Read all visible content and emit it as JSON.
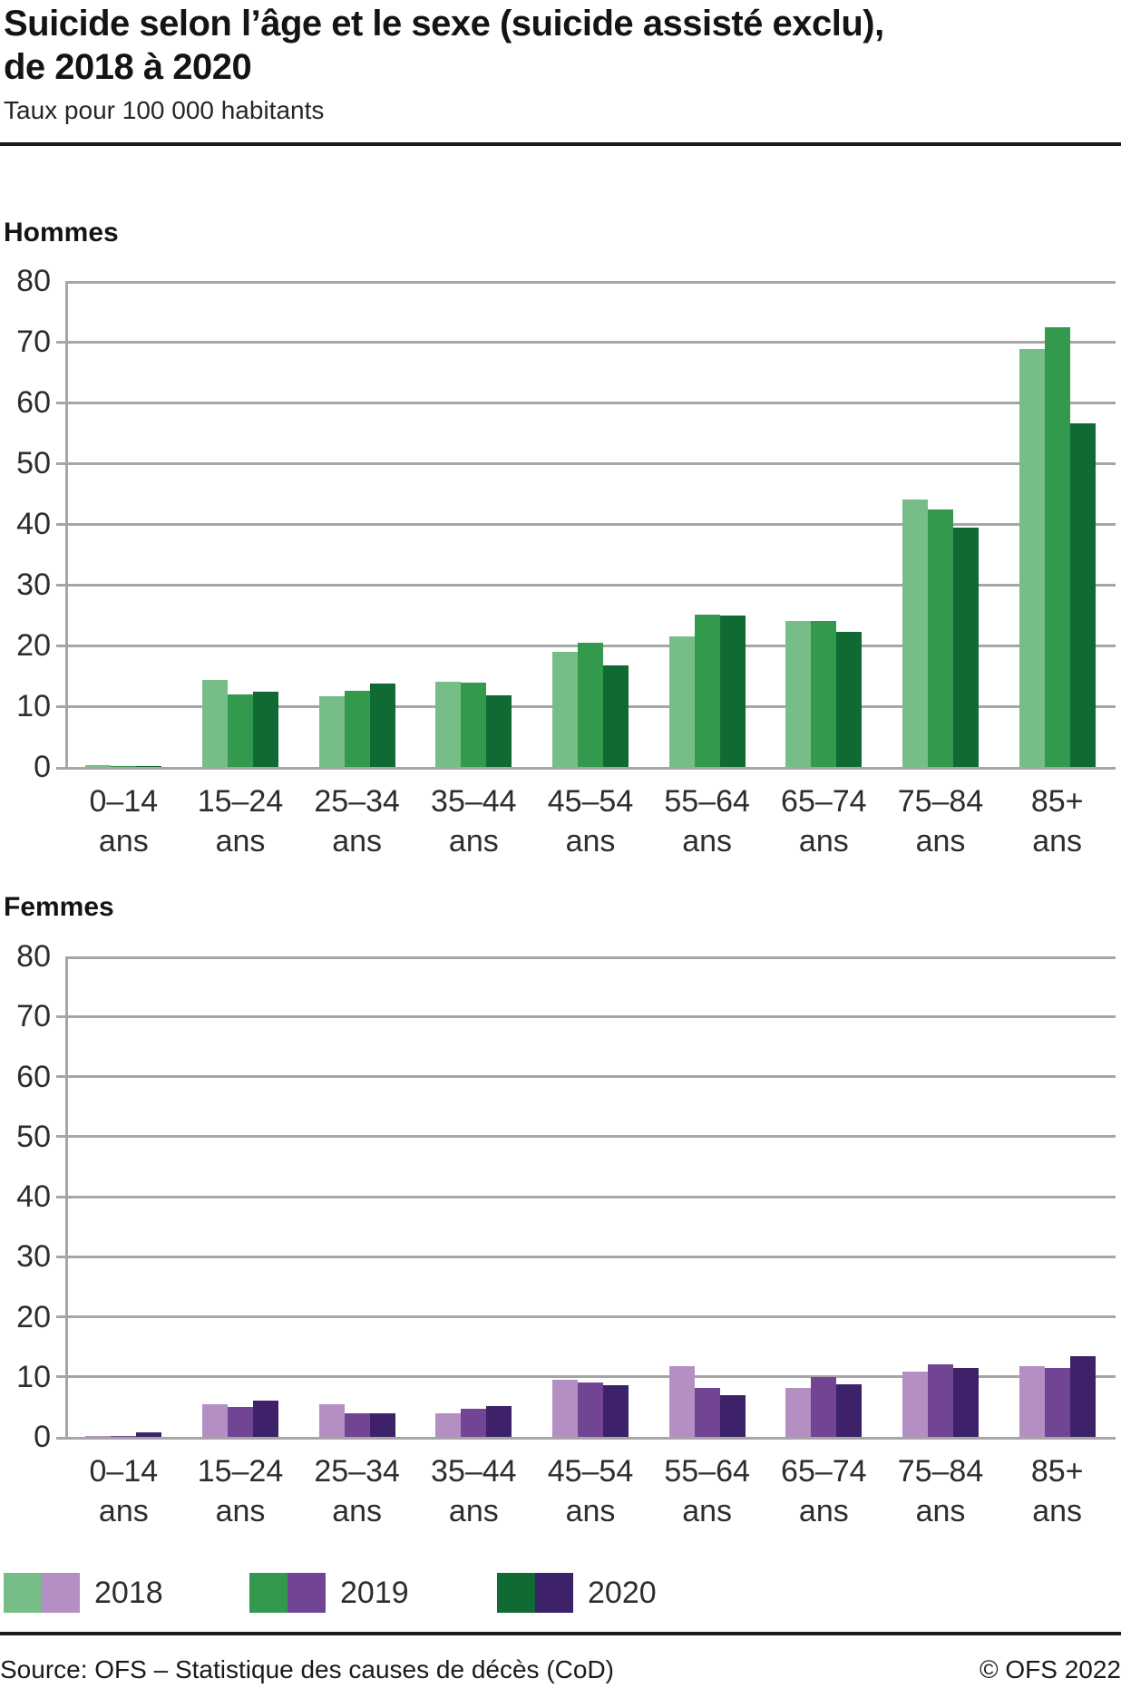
{
  "header": {
    "title_line1": "Suicide selon l’âge et le sexe (suicide assisté exclu),",
    "title_line2": "de 2018 à 2020",
    "subtitle": "Taux pour 100 000 habitants"
  },
  "colors": {
    "green_2018": "#77bd87",
    "green_2019": "#33994d",
    "green_2020": "#0f6b33",
    "purple_2018": "#b38fc3",
    "purple_2019": "#714594",
    "purple_2020": "#3d2169",
    "gridline": "#a6a6a6"
  },
  "legend": {
    "items": [
      {
        "label": "2018",
        "green": "#77bd87",
        "purple": "#b38fc3"
      },
      {
        "label": "2019",
        "green": "#33994d",
        "purple": "#714594"
      },
      {
        "label": "2020",
        "green": "#0f6b33",
        "purple": "#3d2169"
      }
    ]
  },
  "chart_data": [
    {
      "type": "bar",
      "title": "Hommes",
      "categories": [
        "0–14",
        "15–24",
        "25–34",
        "35–44",
        "45–54",
        "55–64",
        "65–74",
        "75–84",
        "85+"
      ],
      "category_suffix": "ans",
      "series": [
        {
          "name": "2018",
          "color": "#77bd87",
          "values": [
            0.3,
            14.3,
            11.7,
            14.1,
            19.0,
            21.5,
            24.0,
            44.0,
            68.8
          ]
        },
        {
          "name": "2019",
          "color": "#33994d",
          "values": [
            0.1,
            12.0,
            12.5,
            13.9,
            20.5,
            25.1,
            24.0,
            42.4,
            72.4
          ]
        },
        {
          "name": "2020",
          "color": "#0f6b33",
          "values": [
            0.1,
            12.4,
            13.8,
            11.8,
            16.7,
            25.0,
            22.3,
            39.4,
            56.6
          ]
        }
      ],
      "ylim": [
        0,
        80
      ],
      "ytick_step": 10,
      "grid": true,
      "xlabel": "",
      "ylabel": ""
    },
    {
      "type": "bar",
      "title": "Femmes",
      "categories": [
        "0–14",
        "15–24",
        "25–34",
        "35–44",
        "45–54",
        "55–64",
        "65–74",
        "75–84",
        "85+"
      ],
      "category_suffix": "ans",
      "series": [
        {
          "name": "2018",
          "color": "#b38fc3",
          "values": [
            0.1,
            5.5,
            5.4,
            3.9,
            9.5,
            11.8,
            8.2,
            10.9,
            11.7
          ]
        },
        {
          "name": "2019",
          "color": "#714594",
          "values": [
            0.2,
            5.0,
            4.0,
            4.7,
            9.1,
            8.1,
            10.0,
            12.1,
            11.4
          ]
        },
        {
          "name": "2020",
          "color": "#3d2169",
          "values": [
            0.8,
            6.1,
            4.0,
            5.1,
            8.6,
            7.0,
            8.7,
            11.5,
            13.4
          ]
        }
      ],
      "ylim": [
        0,
        80
      ],
      "ytick_step": 10,
      "grid": true,
      "xlabel": "",
      "ylabel": ""
    }
  ],
  "footer": {
    "source": "Source: OFS – Statistique des causes de décès (CoD)",
    "copyright": "© OFS 2022"
  }
}
